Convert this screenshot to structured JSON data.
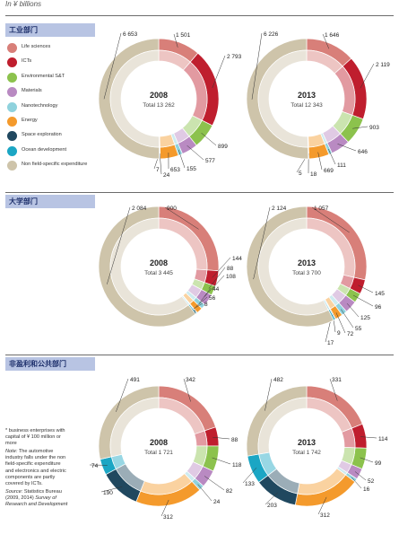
{
  "header": {
    "unit": "In ¥ billions"
  },
  "sections": [
    {
      "title": "工业部门"
    },
    {
      "title": "大学部门"
    },
    {
      "title": "非盈利和公共部门"
    }
  ],
  "colors": {
    "life_sciences": "#d87f79",
    "icts": "#bf1e2e",
    "environmental": "#8cc24d",
    "materials": "#b98ac2",
    "nanotech": "#8fd2dd",
    "energy": "#f49a2c",
    "space": "#20485f",
    "ocean": "#1ba6c4",
    "non_field": "#cec4aa",
    "tab_bg": "#b8c4e3",
    "tab_text": "#1d2f6b"
  },
  "legend": [
    {
      "label": "Life sciences",
      "color": "#d87f79"
    },
    {
      "label": "ICTs",
      "color": "#bf1e2e"
    },
    {
      "label": "Environmental S&T",
      "color": "#8cc24d"
    },
    {
      "label": "Materials",
      "color": "#b98ac2"
    },
    {
      "label": "Nanotechnology",
      "color": "#8fd2dd"
    },
    {
      "label": "Energy",
      "color": "#f49a2c"
    },
    {
      "label": "Space exploration",
      "color": "#20485f"
    },
    {
      "label": "Ocean development",
      "color": "#1ba6c4"
    },
    {
      "label": "Non field-specific expenditure",
      "color": "#cec4aa"
    }
  ],
  "notes": {
    "footnote": "* business enterprises with capital of ¥ 100 million or more",
    "note_lead": "Note:",
    "note_text": "The automotive industry falls under the non field-specific expenditure and electronics and electric components are partly covered by ICTs.",
    "source_lead": "Source:",
    "source_text": "Statistics Bureau (2009, 2014)",
    "source_pub": "Survey of Research and Development"
  },
  "chart_data": [
    {
      "type": "pie",
      "section": "工业部门",
      "year": "2008",
      "total_label": "Total 13 262",
      "categories": [
        "Life sciences",
        "ICTs",
        "Environmental S&T",
        "Materials",
        "Nanotechnology",
        "Energy",
        "Space exploration",
        "Ocean development",
        "Non field-specific expenditure"
      ],
      "values": [
        1501,
        2793,
        899,
        577,
        155,
        653,
        24,
        7,
        6653
      ],
      "value_labels": [
        "1 501",
        "2 793",
        "899",
        "577",
        "155",
        "653",
        "24",
        "7",
        "6 653"
      ]
    },
    {
      "type": "pie",
      "section": "工业部门",
      "year": "2013",
      "total_label": "Total 12 343",
      "categories": [
        "Life sciences",
        "ICTs",
        "Environmental S&T",
        "Materials",
        "Nanotechnology",
        "Energy",
        "Space exploration",
        "Ocean development",
        "Non field-specific expenditure"
      ],
      "values": [
        1646,
        2119,
        903,
        646,
        111,
        669,
        18,
        5,
        6226
      ],
      "value_labels": [
        "1 646",
        "2 119",
        "903",
        "646",
        "111",
        "669",
        "18",
        "5",
        "6 226"
      ]
    },
    {
      "type": "pie",
      "section": "大学部门",
      "year": "2008",
      "total_label": "Total 3 445",
      "categories": [
        "Life sciences",
        "ICTs",
        "Environmental S&T",
        "Materials",
        "Nanotechnology",
        "Energy",
        "Space exploration",
        "Ocean development",
        "Non field-specific expenditure"
      ],
      "values": [
        900,
        144,
        88,
        108,
        44,
        56,
        8,
        13,
        2084
      ],
      "value_labels": [
        "900",
        "144",
        "88",
        "108",
        "44",
        "56",
        "8",
        "13",
        "2 084"
      ]
    },
    {
      "type": "pie",
      "section": "大学部门",
      "year": "2013",
      "total_label": "Total 3 700",
      "categories": [
        "Life sciences",
        "ICTs",
        "Environmental S&T",
        "Materials",
        "Nanotechnology",
        "Energy",
        "Space exploration",
        "Ocean development",
        "Non field-specific expenditure"
      ],
      "values": [
        1057,
        145,
        96,
        125,
        55,
        72,
        9,
        17,
        2124
      ],
      "value_labels": [
        "1 057",
        "145",
        "96",
        "125",
        "55",
        "72",
        "9",
        "17",
        "2 124"
      ]
    },
    {
      "type": "pie",
      "section": "非盈利和公共部门",
      "year": "2008",
      "total_label": "Total 1 721",
      "categories": [
        "Life sciences",
        "ICTs",
        "Environmental S&T",
        "Materials",
        "Nanotechnology",
        "Energy",
        "Space exploration",
        "Ocean development",
        "Non field-specific expenditure"
      ],
      "values": [
        342,
        88,
        118,
        82,
        24,
        312,
        190,
        74,
        491
      ],
      "value_labels": [
        "342",
        "88",
        "118",
        "82",
        "24",
        "312",
        "190",
        "74",
        "491"
      ]
    },
    {
      "type": "pie",
      "section": "非盈利和公共部门",
      "year": "2013",
      "total_label": "Total 1 742",
      "categories": [
        "Life sciences",
        "ICTs",
        "Environmental S&T",
        "Materials",
        "Nanotechnology",
        "Energy",
        "Space exploration",
        "Ocean development",
        "Non field-specific expenditure"
      ],
      "values": [
        331,
        114,
        99,
        52,
        16,
        312,
        203,
        133,
        482
      ],
      "value_labels": [
        "331",
        "114",
        "99",
        "52",
        "16",
        "312",
        "203",
        "133",
        "482"
      ]
    }
  ]
}
